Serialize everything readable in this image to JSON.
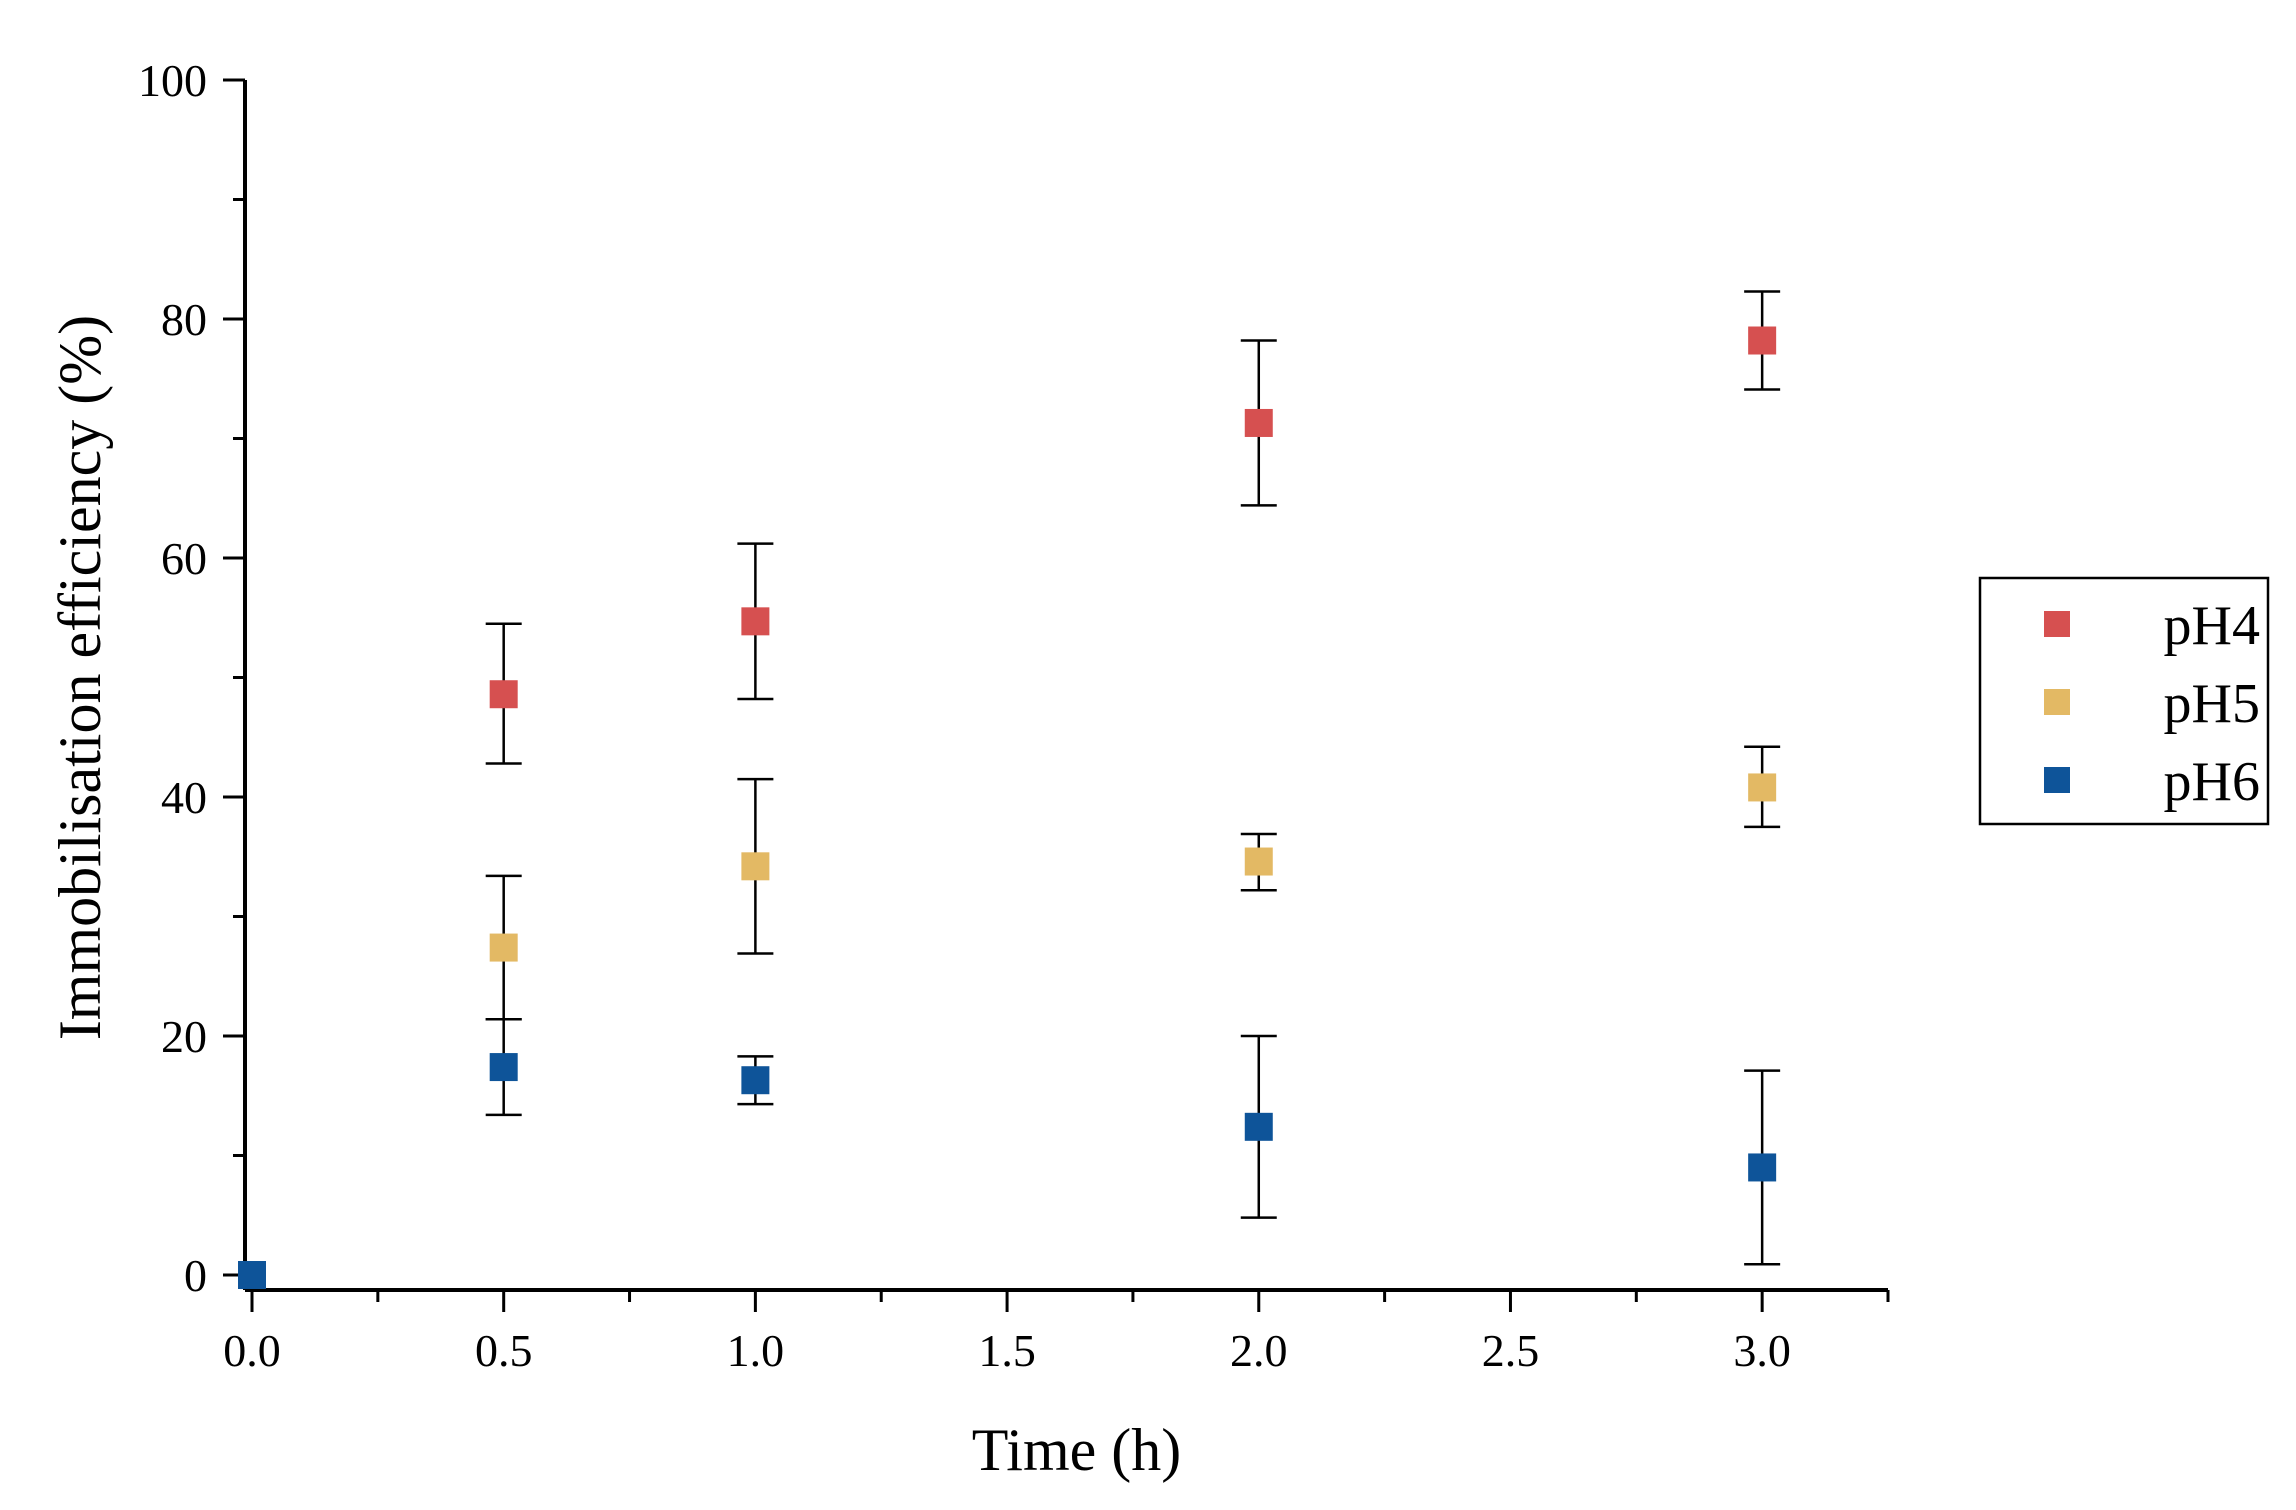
{
  "chart_data": {
    "type": "scatter",
    "title": "",
    "xlabel": "Time (h)",
    "ylabel": "Immobilisation efficiency (%)",
    "xlim": [
      0,
      3.25
    ],
    "ylim": [
      0,
      100
    ],
    "x_major_ticks": [
      0.0,
      0.5,
      1.0,
      1.5,
      2.0,
      2.5,
      3.0
    ],
    "x_tick_labels": [
      "0.0",
      "0.5",
      "1.0",
      "1.5",
      "2.0",
      "2.5",
      "3.0"
    ],
    "y_major_ticks": [
      0,
      20,
      40,
      60,
      80,
      100
    ],
    "y_tick_labels": [
      "0",
      "20",
      "40",
      "60",
      "80",
      "100"
    ],
    "grid": false,
    "legend_position": "right",
    "series": [
      {
        "name": "pH4",
        "color": "#d65050",
        "x": [
          0.5,
          1.0,
          2.0,
          3.0
        ],
        "y": [
          48.6,
          54.7,
          71.3,
          78.2
        ],
        "err_low": [
          5.8,
          6.5,
          6.9,
          4.1
        ],
        "err_high": [
          5.9,
          6.5,
          6.9,
          4.1
        ]
      },
      {
        "name": "pH5",
        "color": "#e3b964",
        "x": [
          0.5,
          1.0,
          2.0,
          3.0
        ],
        "y": [
          27.4,
          34.2,
          34.6,
          40.8
        ],
        "err_low": [
          6.0,
          7.3,
          2.4,
          3.3
        ],
        "err_high": [
          6.0,
          7.3,
          2.3,
          3.4
        ]
      },
      {
        "name": "pH6",
        "color": "#0e5499",
        "x": [
          0.0,
          0.5,
          1.0,
          2.0,
          3.0
        ],
        "y": [
          0.0,
          17.4,
          16.3,
          12.4,
          9.0
        ],
        "err_low": [
          0,
          4.0,
          2.0,
          7.6,
          8.1
        ],
        "err_high": [
          0,
          4.0,
          2.0,
          7.6,
          8.1
        ]
      }
    ]
  }
}
